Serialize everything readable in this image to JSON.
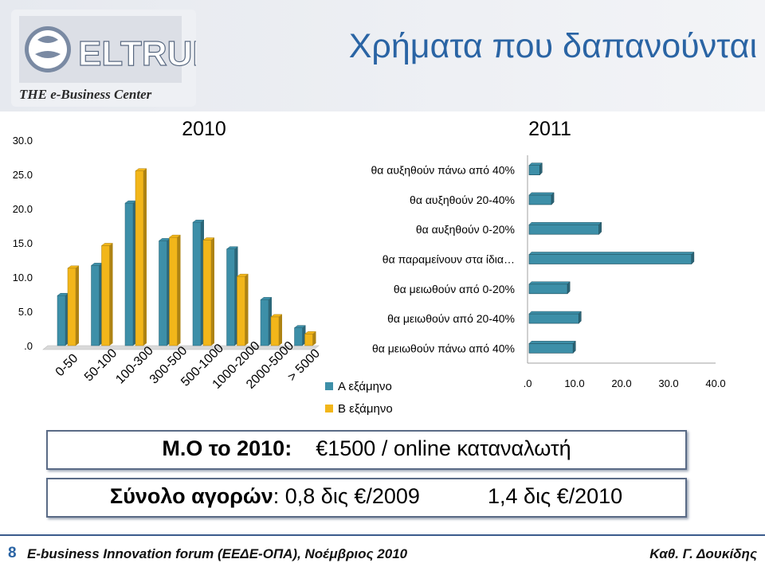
{
  "header": {
    "title": "Χρήματα που δαπανούνται",
    "logo_name": "ELTRUN",
    "logo_tagline": "THE e-Business Center"
  },
  "colors": {
    "series_a": "#3d8fa8",
    "series_b": "#f2b61a",
    "bar2011": "#3d8fa8",
    "title": "#2a64a4"
  },
  "chart_data": [
    {
      "type": "bar",
      "title": "2010",
      "categories": [
        "0-50",
        "50-100",
        "100-300",
        "300-500",
        "500-1000",
        "1000-2000",
        "2000-5000",
        "> 5000"
      ],
      "series": [
        {
          "name": "Α εξάμηνο",
          "values": [
            7.3,
            11.7,
            20.8,
            15.3,
            18.0,
            14.1,
            6.7,
            2.6
          ]
        },
        {
          "name": "Β εξάμηνο",
          "values": [
            11.3,
            14.6,
            25.5,
            15.8,
            15.4,
            10.1,
            4.2,
            1.7
          ]
        }
      ],
      "yticks": [
        "30.0",
        "25.0",
        "20.0",
        "15.0",
        "10.0",
        "5.0",
        ".0"
      ],
      "ylim": [
        0,
        30
      ],
      "legend": "bottom-right"
    },
    {
      "type": "bar",
      "orientation": "horizontal",
      "title": "2011",
      "categories": [
        "θα αυξηθούν πάνω από 40%",
        "θα αυξηθούν 20-40%",
        "θα αυξηθούν 0-20%",
        "θα παραμείνουν στα ίδια…",
        "θα μειωθούν από 0-20%",
        "θα μειωθούν από 20-40%",
        "θα μειωθούν πάνω από 40%"
      ],
      "values": [
        2.6,
        5.1,
        15.2,
        34.9,
        8.5,
        10.9,
        9.7
      ],
      "xticks": [
        ".0",
        "10.0",
        "20.0",
        "30.0",
        "40.0"
      ],
      "xlim": [
        0,
        40
      ]
    }
  ],
  "box1": {
    "label": "Μ.Ο το 2010:",
    "value": "€1500 / online καταναλωτή"
  },
  "box2": {
    "label": "Σύνολο αγορών",
    "value1": ": 0,8 δις €/2009",
    "value2": "1,4 δις €/2010"
  },
  "footer": {
    "page": "8",
    "left": "E-business Innovation forum (ΕΕΔΕ-ΟΠΑ), Νοέμβριος 2010",
    "right": "Καθ. Γ. Δουκίδης"
  }
}
